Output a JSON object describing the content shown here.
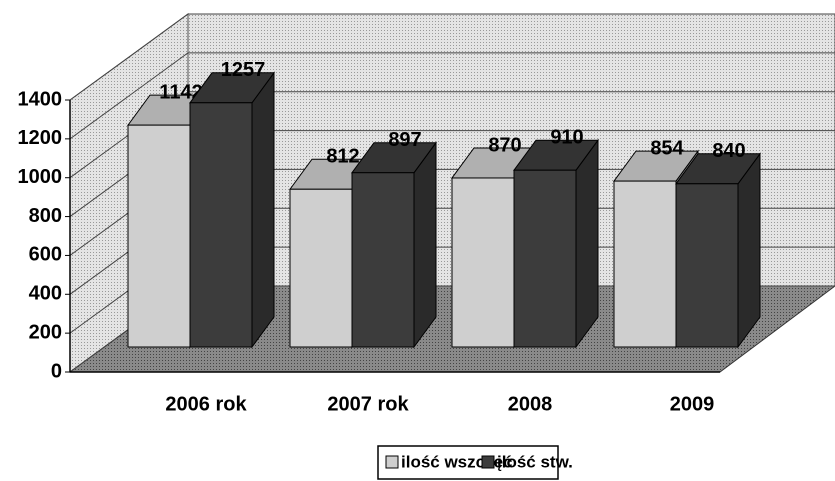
{
  "chart_data": {
    "type": "bar3d",
    "categories": [
      "2006 rok",
      "2007 rok",
      "2008",
      "2009"
    ],
    "series": [
      {
        "name": "ilość wszczęć",
        "color": "#cfcfcf",
        "values": [
          1142,
          812,
          870,
          854
        ]
      },
      {
        "name": "ilość stw.",
        "color": "#3c3c3c",
        "values": [
          1257,
          897,
          910,
          840
        ]
      }
    ],
    "ylim": [
      0,
      1400
    ],
    "yticks": [
      0,
      200,
      400,
      600,
      800,
      1000,
      1200,
      1400
    ],
    "grid": true
  }
}
